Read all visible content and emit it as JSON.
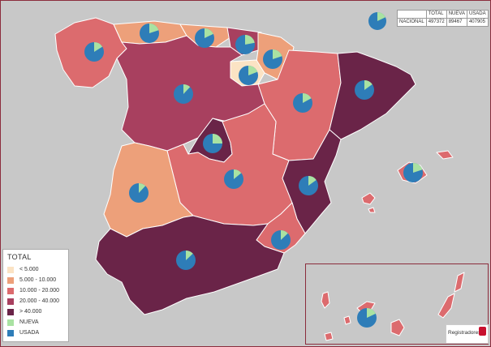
{
  "legend": {
    "title": "TOTAL",
    "items": [
      {
        "label": "< 5.000",
        "color": "#fbe3c4"
      },
      {
        "label": "5.000 - 10.000",
        "color": "#eda07a"
      },
      {
        "label": "10.000 - 20.000",
        "color": "#dc6b6e"
      },
      {
        "label": "20.000 - 40.000",
        "color": "#a8405f"
      },
      {
        "label": "> 40.000",
        "color": "#6a2448"
      },
      {
        "label": "NUEVA",
        "color": "#a9e2a2"
      },
      {
        "label": "USADA",
        "color": "#2e7db8"
      }
    ]
  },
  "summary_table": {
    "headers": [
      "",
      "TOTAL",
      "NUEVA",
      "USADA"
    ],
    "row_label": "NACIONAL",
    "values": [
      "497372",
      "89467",
      "407905"
    ]
  },
  "national_pie": {
    "nueva": 89467,
    "usada": 407905
  },
  "colors": {
    "background": "#c8c8c8",
    "border": "#8b2c3c",
    "nueva": "#a9e2a2",
    "usada": "#2e7db8"
  },
  "regions": [
    {
      "id": "galicia",
      "color": "#dc6b6e",
      "nueva_share": 0.16
    },
    {
      "id": "asturias",
      "color": "#eda07a",
      "nueva_share": 0.2
    },
    {
      "id": "cantabria",
      "color": "#eda07a",
      "nueva_share": 0.18
    },
    {
      "id": "pais-vasco",
      "color": "#a8405f",
      "nueva_share": 0.22
    },
    {
      "id": "navarra",
      "color": "#eda07a",
      "nueva_share": 0.2
    },
    {
      "id": "la-rioja",
      "color": "#fbe3c4",
      "nueva_share": 0.19
    },
    {
      "id": "aragon",
      "color": "#dc6b6e",
      "nueva_share": 0.17
    },
    {
      "id": "cataluna",
      "color": "#6a2448",
      "nueva_share": 0.15
    },
    {
      "id": "castilla-leon",
      "color": "#a8405f",
      "nueva_share": 0.12
    },
    {
      "id": "madrid",
      "color": "#6a2448",
      "nueva_share": 0.25
    },
    {
      "id": "castilla-la-mancha",
      "color": "#dc6b6e",
      "nueva_share": 0.14
    },
    {
      "id": "extremadura",
      "color": "#eda07a",
      "nueva_share": 0.12
    },
    {
      "id": "comunidad-valenciana",
      "color": "#6a2448",
      "nueva_share": 0.15
    },
    {
      "id": "murcia",
      "color": "#dc6b6e",
      "nueva_share": 0.13
    },
    {
      "id": "andalucia",
      "color": "#6a2448",
      "nueva_share": 0.13
    },
    {
      "id": "baleares",
      "color": "#dc6b6e",
      "nueva_share": 0.2
    },
    {
      "id": "canarias",
      "color": "#dc6b6e",
      "nueva_share": 0.18
    }
  ],
  "logo": {
    "text": "Registradores"
  }
}
